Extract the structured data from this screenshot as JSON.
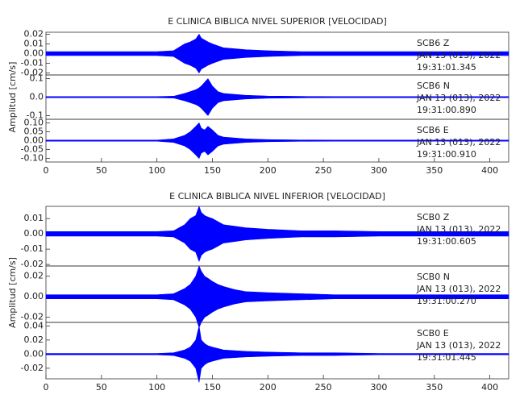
{
  "chart_data": [
    {
      "type": "seismogram",
      "title": "E CLINICA BIBLICA NIVEL SUPERIOR [VELOCIDAD]",
      "y_label": "Amplitud [cm/s]",
      "xlim": [
        0,
        417
      ],
      "xticks": [
        0,
        50,
        100,
        150,
        200,
        250,
        300,
        350,
        400
      ],
      "color": "#0000ff",
      "x": [
        0,
        50,
        100,
        115,
        125,
        130,
        135,
        138,
        140,
        143,
        146,
        150,
        155,
        160,
        170,
        180,
        200,
        230,
        260,
        300,
        350,
        417
      ],
      "panels": [
        {
          "annotation": [
            "SCB6   Z",
            "JAN 13 (013), 2022",
            "19:31:01.345"
          ],
          "ylim": [
            -0.022,
            0.022
          ],
          "yticks": [
            0.02,
            0.01,
            {
              "value": 0,
              "label": "0.00"
            },
            -0.01,
            -0.02
          ],
          "values": [
            0.002,
            0.002,
            0.002,
            0.003,
            0.01,
            0.012,
            0.015,
            0.02,
            0.016,
            0.014,
            0.012,
            0.01,
            0.008,
            0.006,
            0.005,
            0.004,
            0.003,
            0.002,
            0.002,
            0.002,
            0.002,
            0.002
          ]
        },
        {
          "annotation": [
            "SCB6   N",
            "JAN 13 (013), 2022",
            "19:31:00.890"
          ],
          "ylim": [
            -0.12,
            0.12
          ],
          "yticks": [
            0.1,
            {
              "value": 0,
              "label": "0.0"
            },
            -0.1
          ],
          "values": [
            0.003,
            0.003,
            0.003,
            0.005,
            0.02,
            0.03,
            0.04,
            0.05,
            0.06,
            0.08,
            0.1,
            0.06,
            0.03,
            0.02,
            0.015,
            0.01,
            0.006,
            0.004,
            0.003,
            0.003,
            0.003,
            0.003
          ]
        },
        {
          "annotation": [
            "SCB6   E",
            "JAN 13 (013), 2022",
            "19:31:00.910"
          ],
          "ylim": [
            -0.12,
            0.12
          ],
          "yticks": [
            {
              "value": 0.1,
              "label": "0.10"
            },
            0.05,
            {
              "value": 0,
              "label": "0.00"
            },
            -0.05,
            {
              "value": -0.1,
              "label": "-0.10"
            }
          ],
          "values": [
            0.003,
            0.003,
            0.003,
            0.01,
            0.03,
            0.05,
            0.08,
            0.1,
            0.07,
            0.06,
            0.08,
            0.06,
            0.03,
            0.02,
            0.015,
            0.01,
            0.006,
            0.004,
            0.003,
            0.003,
            0.003,
            0.003
          ]
        }
      ]
    },
    {
      "type": "seismogram",
      "title": "E CLINICA BIBLICA NIVEL INFERIOR [VELOCIDAD]",
      "y_label": "Amplitud [cm/s]",
      "xlim": [
        0,
        417
      ],
      "xticks": [
        0,
        50,
        100,
        150,
        200,
        250,
        300,
        350,
        400
      ],
      "color": "#0000ff",
      "x": [
        0,
        50,
        100,
        115,
        125,
        130,
        135,
        138,
        140,
        143,
        146,
        150,
        155,
        160,
        170,
        180,
        200,
        230,
        260,
        300,
        350,
        417
      ],
      "panels": [
        {
          "annotation": [
            "SCB0   Z",
            "JAN 13 (013), 2022",
            "19:31:00.605"
          ],
          "ylim": [
            -0.021,
            0.018
          ],
          "yticks": [
            0.01,
            {
              "value": 0,
              "label": "0.00"
            },
            -0.01,
            -0.02
          ],
          "values": [
            0.0015,
            0.0015,
            0.0015,
            0.002,
            0.006,
            0.01,
            0.012,
            0.018,
            0.014,
            0.012,
            0.011,
            0.01,
            0.008,
            0.006,
            0.005,
            0.004,
            0.003,
            0.002,
            0.002,
            0.0015,
            0.0015,
            0.0015
          ]
        },
        {
          "annotation": [
            "SCB0   N",
            "JAN 13 (013), 2022",
            "19:31:00.270"
          ],
          "ylim": [
            -0.025,
            0.03
          ],
          "yticks": [
            0.02,
            {
              "value": 0,
              "label": "0.00"
            },
            -0.02
          ],
          "values": [
            0.002,
            0.002,
            0.002,
            0.003,
            0.008,
            0.012,
            0.02,
            0.03,
            0.025,
            0.02,
            0.018,
            0.015,
            0.012,
            0.01,
            0.007,
            0.005,
            0.004,
            0.003,
            0.002,
            0.002,
            0.002,
            0.002
          ]
        },
        {
          "annotation": [
            "SCB0   E",
            "JAN 13 (013), 2022",
            "19:31:01.445"
          ],
          "ylim": [
            -0.035,
            0.045
          ],
          "yticks": [
            0.04,
            0.02,
            {
              "value": 0,
              "label": "0.00"
            },
            -0.02
          ],
          "values": [
            0.001,
            0.001,
            0.001,
            0.002,
            0.006,
            0.01,
            0.02,
            0.04,
            0.02,
            0.015,
            0.012,
            0.01,
            0.008,
            0.006,
            0.005,
            0.004,
            0.003,
            0.002,
            0.002,
            0.001,
            0.001,
            0.001
          ]
        }
      ]
    }
  ]
}
